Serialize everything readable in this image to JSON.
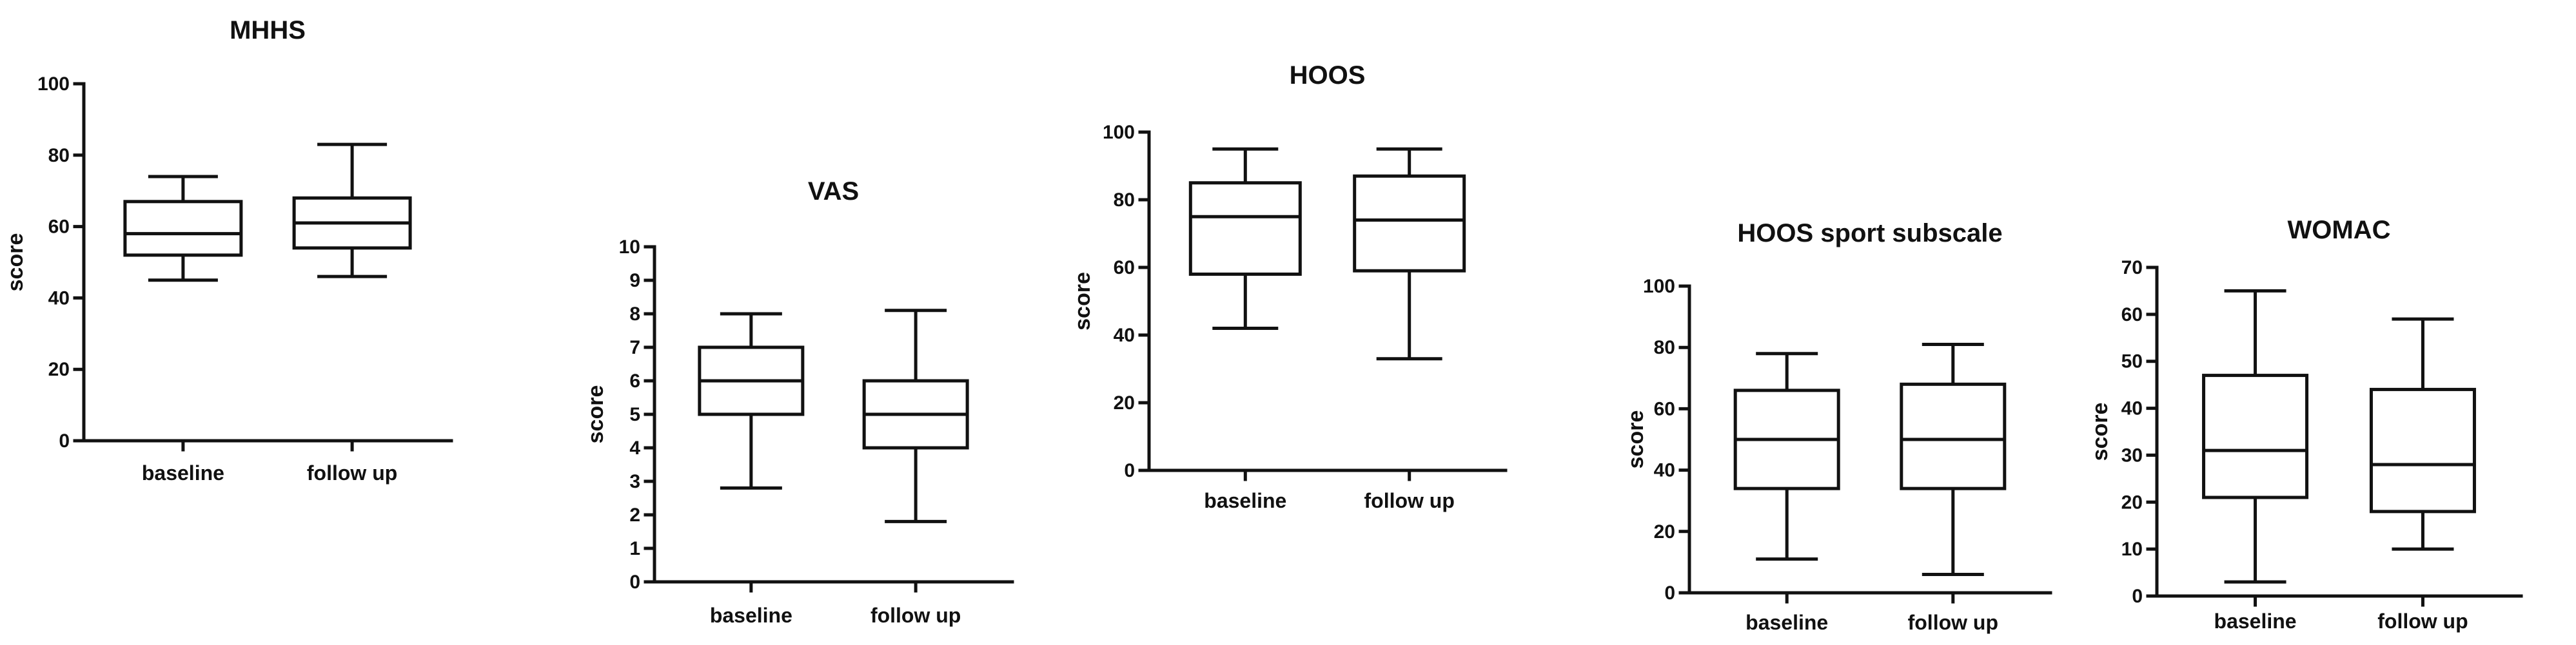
{
  "chart_data": [
    {
      "type": "box",
      "title": "MHHS",
      "ylabel": "score",
      "ylim": [
        0,
        100
      ],
      "yticks": [
        0,
        20,
        40,
        60,
        80,
        100
      ],
      "categories": [
        "baseline",
        "follow up"
      ],
      "boxes": [
        {
          "category": "baseline",
          "min": 45,
          "q1": 52,
          "median": 58,
          "q3": 67,
          "max": 74
        },
        {
          "category": "follow up",
          "min": 46,
          "q1": 54,
          "median": 61,
          "q3": 68,
          "max": 83
        }
      ]
    },
    {
      "type": "box",
      "title": "VAS",
      "ylabel": "score",
      "ylim": [
        0,
        10
      ],
      "yticks": [
        0,
        1,
        2,
        3,
        4,
        5,
        6,
        7,
        8,
        9,
        10
      ],
      "categories": [
        "baseline",
        "follow up"
      ],
      "boxes": [
        {
          "category": "baseline",
          "min": 2.8,
          "q1": 5,
          "median": 6,
          "q3": 7,
          "max": 8
        },
        {
          "category": "follow up",
          "min": 1.8,
          "q1": 4,
          "median": 5,
          "q3": 6,
          "max": 8.1
        }
      ]
    },
    {
      "type": "box",
      "title": "HOOS",
      "ylabel": "score",
      "ylim": [
        0,
        100
      ],
      "yticks": [
        0,
        20,
        40,
        60,
        80,
        100
      ],
      "categories": [
        "baseline",
        "follow up"
      ],
      "boxes": [
        {
          "category": "baseline",
          "min": 42,
          "q1": 58,
          "median": 75,
          "q3": 85,
          "max": 95
        },
        {
          "category": "follow up",
          "min": 33,
          "q1": 59,
          "median": 74,
          "q3": 87,
          "max": 95
        }
      ]
    },
    {
      "type": "box",
      "title": "HOOS sport subscale",
      "ylabel": "score",
      "ylim": [
        0,
        100
      ],
      "yticks": [
        0,
        20,
        40,
        60,
        80,
        100
      ],
      "categories": [
        "baseline",
        "follow up"
      ],
      "boxes": [
        {
          "category": "baseline",
          "min": 11,
          "q1": 34,
          "median": 50,
          "q3": 66,
          "max": 78
        },
        {
          "category": "follow up",
          "min": 6,
          "q1": 34,
          "median": 50,
          "q3": 68,
          "max": 81
        }
      ]
    },
    {
      "type": "box",
      "title": "WOMAC",
      "ylabel": "score",
      "ylim": [
        0,
        70
      ],
      "yticks": [
        0,
        10,
        20,
        30,
        40,
        50,
        60,
        70
      ],
      "categories": [
        "baseline",
        "follow up"
      ],
      "boxes": [
        {
          "category": "baseline",
          "min": 3,
          "q1": 21,
          "median": 31,
          "q3": 47,
          "max": 65
        },
        {
          "category": "follow up",
          "min": 10,
          "q1": 18,
          "median": 28,
          "q3": 44,
          "max": 59
        }
      ]
    }
  ]
}
